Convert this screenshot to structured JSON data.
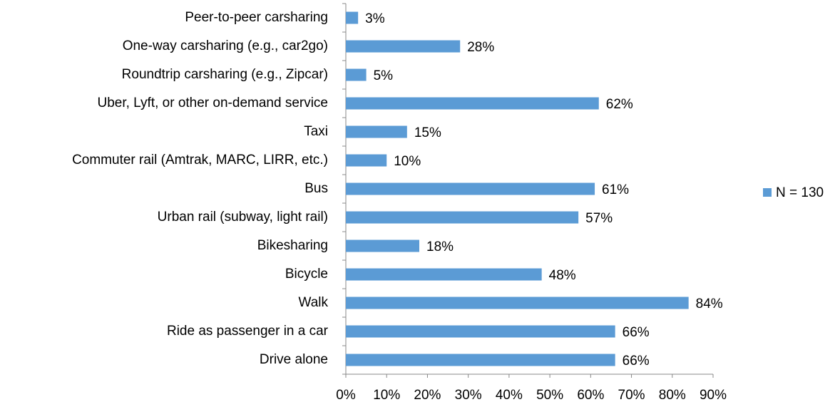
{
  "chart_data": {
    "type": "bar",
    "orientation": "horizontal",
    "categories": [
      "Peer-to-peer carsharing",
      "One-way carsharing (e.g., car2go)",
      "Roundtrip carsharing (e.g., Zipcar)",
      "Uber, Lyft, or other on-demand service",
      "Taxi",
      "Commuter rail (Amtrak, MARC, LIRR, etc.)",
      "Bus",
      "Urban rail (subway, light rail)",
      "Bikesharing",
      "Bicycle",
      "Walk",
      "Ride as passenger in a car",
      "Drive alone"
    ],
    "series": [
      {
        "name": "N = 130",
        "color": "#5b9bd5",
        "values": [
          3,
          28,
          5,
          62,
          15,
          10,
          61,
          57,
          18,
          48,
          84,
          66,
          66
        ],
        "value_labels": [
          "3%",
          "28%",
          "5%",
          "62%",
          "15%",
          "10%",
          "61%",
          "57%",
          "18%",
          "48%",
          "84%",
          "66%",
          "66%"
        ]
      }
    ],
    "xlim": [
      0,
      90
    ],
    "xticks": [
      {
        "value": 0,
        "label": "0%"
      },
      {
        "value": 10,
        "label": "10%"
      },
      {
        "value": 20,
        "label": "20%"
      },
      {
        "value": 30,
        "label": "30%"
      },
      {
        "value": 40,
        "label": "40%"
      },
      {
        "value": 50,
        "label": "50%"
      },
      {
        "value": 60,
        "label": "60%"
      },
      {
        "value": 70,
        "label": "70%"
      },
      {
        "value": 80,
        "label": "80%"
      },
      {
        "value": 90,
        "label": "90%"
      }
    ],
    "legend": "right",
    "grid": false
  }
}
